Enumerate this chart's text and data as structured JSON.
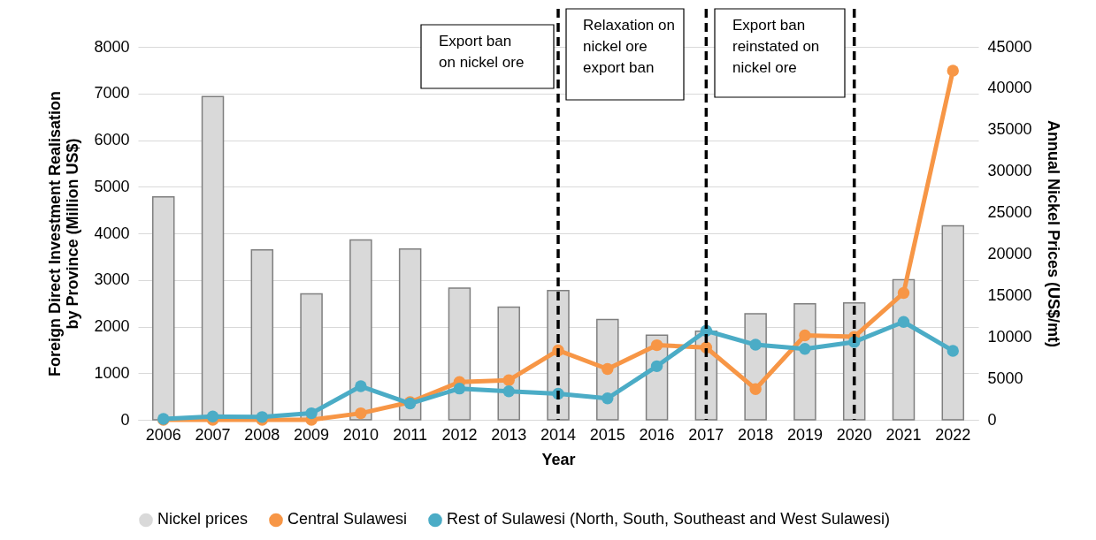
{
  "chart_data": {
    "type": "bar",
    "categories": [
      "2006",
      "2007",
      "2008",
      "2009",
      "2010",
      "2011",
      "2012",
      "2013",
      "2014",
      "2015",
      "2016",
      "2017",
      "2018",
      "2019",
      "2020",
      "2021",
      "2022"
    ],
    "xlabel": "Year",
    "ylabel": "Foreign Direct Investment Realisation by Province (Million US$)",
    "y2label": "Annual Nickel Prices (US$/mt)",
    "ylim": [
      0,
      8000
    ],
    "yticks": [
      0,
      1000,
      2000,
      3000,
      4000,
      5000,
      6000,
      7000,
      8000
    ],
    "y2lim": [
      0,
      45000
    ],
    "y2ticks": [
      0,
      5000,
      10000,
      15000,
      20000,
      25000,
      30000,
      35000,
      40000,
      45000
    ],
    "series": [
      {
        "name": "Nickel prices",
        "axis": "y2",
        "color": "#d9d9d9",
        "values": [
          26900,
          39000,
          20500,
          15200,
          21700,
          20600,
          15900,
          13600,
          15600,
          12100,
          10200,
          10700,
          12800,
          14000,
          14100,
          16900,
          23400
        ]
      },
      {
        "name": "Central Sulawesi",
        "type": "line",
        "color": "#f79646",
        "values": [
          0,
          0,
          0,
          0,
          140,
          380,
          810,
          850,
          1490,
          1090,
          1600,
          1550,
          660,
          1810,
          1780,
          2720,
          7490
        ]
      },
      {
        "name": "Rest of Sulawesi (North, South, Southeast and West Sulawesi)",
        "type": "line",
        "color": "#4bacc6",
        "values": [
          20,
          70,
          60,
          140,
          720,
          350,
          670,
          610,
          560,
          460,
          1150,
          1910,
          1610,
          1520,
          1670,
          2100,
          1480
        ]
      }
    ],
    "ref_lines": [
      {
        "axis": "x",
        "value": "2014",
        "color": "#000000",
        "line_style": "dashed"
      },
      {
        "axis": "x",
        "value": "2017",
        "color": "#000000",
        "line_style": "dashed"
      },
      {
        "axis": "x",
        "value": "2020",
        "color": "#000000",
        "line_style": "dashed"
      }
    ],
    "annotations": [
      "Export ban on nickel ore",
      "Relaxation on nickel ore export ban",
      "Export ban reinstated on nickel ore"
    ],
    "grid": "y",
    "legend": "bottom",
    "marker": "circle",
    "line_style": "solid"
  }
}
